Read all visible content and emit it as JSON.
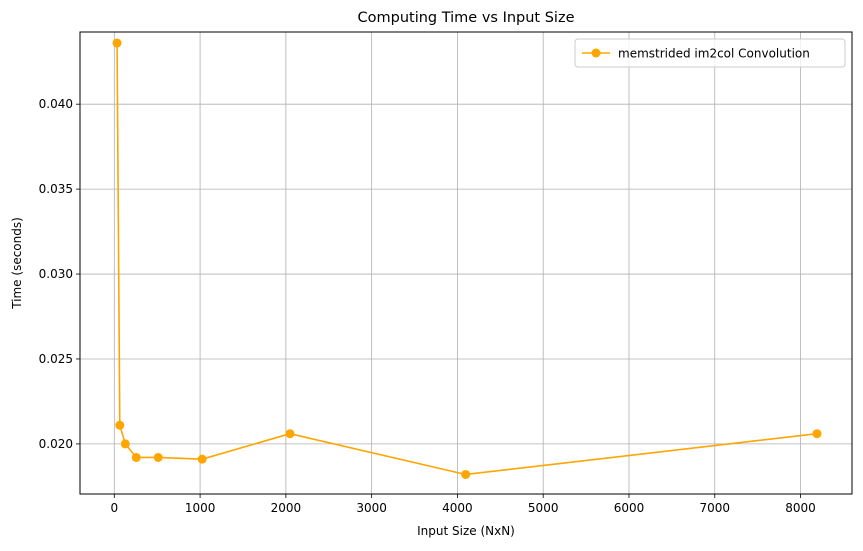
{
  "chart_data": {
    "type": "line",
    "title": "Computing Time vs Input Size",
    "xlabel": "Input Size (NxN)",
    "ylabel": "Time (seconds)",
    "xlim": [
      -400,
      8600
    ],
    "ylim": [
      0.01705,
      0.04425
    ],
    "xticks": [
      0,
      1000,
      2000,
      3000,
      4000,
      5000,
      6000,
      7000,
      8000
    ],
    "xtick_labels": [
      "0",
      "1000",
      "2000",
      "3000",
      "4000",
      "5000",
      "6000",
      "7000",
      "8000"
    ],
    "yticks": [
      0.02,
      0.025,
      0.03,
      0.035,
      0.04
    ],
    "ytick_labels": [
      "0.020",
      "0.025",
      "0.030",
      "0.035",
      "0.040"
    ],
    "grid": true,
    "legend_position": "top-right",
    "series": [
      {
        "name": "memstrided im2col Convolution",
        "color": "#ffa500",
        "marker": "circle",
        "x": [
          32,
          64,
          128,
          256,
          512,
          1024,
          2048,
          4096,
          8192
        ],
        "y": [
          0.0436,
          0.0211,
          0.02,
          0.0192,
          0.0192,
          0.0191,
          0.0206,
          0.0182,
          0.0206
        ]
      }
    ]
  }
}
